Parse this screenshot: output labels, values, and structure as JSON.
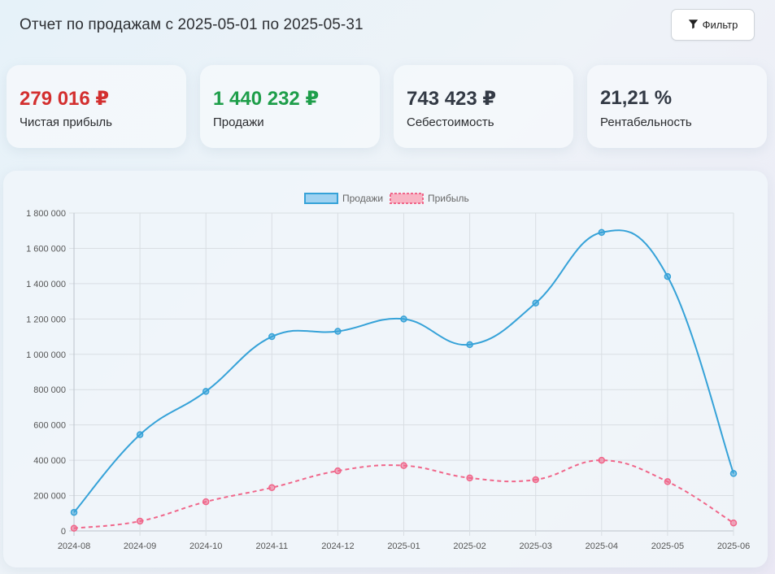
{
  "header": {
    "title": "Отчет по продажам с 2025-05-01 по 2025-05-31",
    "filter_label": "Фильтр",
    "filter_icon": "funnel-icon"
  },
  "kpis": [
    {
      "value": "279 016 ₽",
      "label": "Чистая прибыль",
      "color": "#d32f2f"
    },
    {
      "value": "1 440 232 ₽",
      "label": "Продажи",
      "color": "#1e9e4a"
    },
    {
      "value": "743 423 ₽",
      "label": "Себестоимость",
      "color": "#333a45"
    },
    {
      "value": "21,21 %",
      "label": "Рентабельность",
      "color": "#333a45"
    }
  ],
  "chart_data": {
    "type": "line",
    "categories": [
      "2024-08",
      "2024-09",
      "2024-10",
      "2024-11",
      "2024-12",
      "2025-01",
      "2025-02",
      "2025-03",
      "2025-04",
      "2025-05",
      "2025-06"
    ],
    "series": [
      {
        "name": "Продажи",
        "color": "#36a2d8",
        "style": "solid",
        "values": [
          105000,
          545000,
          790000,
          1100000,
          1130000,
          1200000,
          1055000,
          1290000,
          1690000,
          1440232,
          325000
        ]
      },
      {
        "name": "Прибыль",
        "color": "#f0668a",
        "style": "dashed",
        "values": [
          15000,
          55000,
          165000,
          245000,
          340000,
          370000,
          300000,
          290000,
          400000,
          279016,
          45000
        ]
      }
    ],
    "y_ticks": [
      "0",
      "200 000",
      "400 000",
      "600 000",
      "800 000",
      "1 000 000",
      "1 200 000",
      "1 400 000",
      "1 600 000",
      "1 800 000"
    ],
    "ylim": [
      0,
      1800000
    ],
    "grid": true,
    "legend_position": "top-center"
  }
}
